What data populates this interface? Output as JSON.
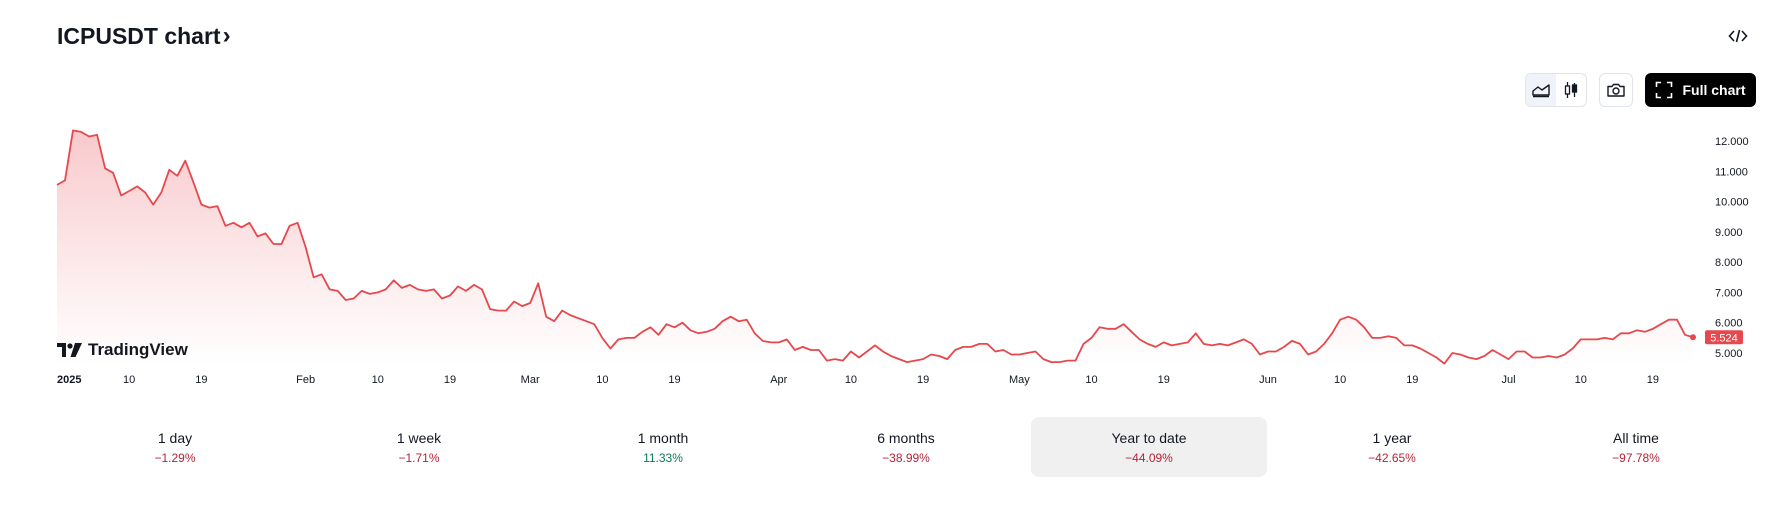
{
  "header": {
    "title": "ICPUSDT chart",
    "chevron": "›"
  },
  "icons": {
    "embed": "code-icon",
    "area_chart": "area-chart-icon",
    "candles": "candlestick-icon",
    "snapshot": "camera-icon",
    "fullscreen": "fullscreen-icon"
  },
  "toolbar": {
    "full_chart_label": "Full chart"
  },
  "brand": {
    "logo_text": "TradingView"
  },
  "colors": {
    "line": "#e5484d",
    "fill_top": "#f8c9cc",
    "neg": "#b2253a",
    "pos": "#0d7a55",
    "badge": "#e5484d"
  },
  "chart_data": {
    "type": "area",
    "ylim": [
      4.6,
      12.6
    ],
    "y_ticks": [
      "12.000",
      "11.000",
      "10.000",
      "9.000",
      "8.000",
      "7.000",
      "6.000",
      "5.000"
    ],
    "y_tick_values": [
      12,
      11,
      10,
      9,
      8,
      7,
      6,
      5
    ],
    "x_ticks": [
      {
        "label": "2025",
        "i": 0,
        "bold": true
      },
      {
        "label": "10",
        "i": 9
      },
      {
        "label": "19",
        "i": 18
      },
      {
        "label": "Feb",
        "i": 31
      },
      {
        "label": "10",
        "i": 40
      },
      {
        "label": "19",
        "i": 49
      },
      {
        "label": "Mar",
        "i": 59
      },
      {
        "label": "10",
        "i": 68
      },
      {
        "label": "19",
        "i": 77
      },
      {
        "label": "Apr",
        "i": 90
      },
      {
        "label": "10",
        "i": 99
      },
      {
        "label": "19",
        "i": 108
      },
      {
        "label": "May",
        "i": 120
      },
      {
        "label": "10",
        "i": 129
      },
      {
        "label": "19",
        "i": 138
      },
      {
        "label": "Jun",
        "i": 151
      },
      {
        "label": "10",
        "i": 160
      },
      {
        "label": "19",
        "i": 169
      },
      {
        "label": "Jul",
        "i": 181
      },
      {
        "label": "10",
        "i": 190
      },
      {
        "label": "19",
        "i": 199
      }
    ],
    "last_value_label": "5.524",
    "values": [
      10.55,
      10.7,
      12.35,
      12.3,
      12.15,
      12.2,
      11.1,
      10.95,
      10.2,
      10.35,
      10.5,
      10.3,
      9.9,
      10.3,
      11.05,
      10.85,
      11.35,
      10.65,
      9.9,
      9.8,
      9.85,
      9.2,
      9.3,
      9.15,
      9.3,
      8.85,
      8.95,
      8.6,
      8.6,
      9.2,
      9.3,
      8.5,
      7.5,
      7.6,
      7.1,
      7.05,
      6.75,
      6.8,
      7.05,
      6.95,
      7.0,
      7.1,
      7.4,
      7.15,
      7.25,
      7.1,
      7.05,
      7.1,
      6.8,
      6.9,
      7.2,
      7.05,
      7.25,
      7.1,
      6.45,
      6.4,
      6.4,
      6.7,
      6.55,
      6.65,
      7.3,
      6.2,
      6.05,
      6.4,
      6.25,
      6.15,
      6.05,
      5.95,
      5.5,
      5.15,
      5.45,
      5.5,
      5.5,
      5.7,
      5.85,
      5.6,
      5.95,
      5.85,
      6.0,
      5.75,
      5.65,
      5.7,
      5.8,
      6.05,
      6.2,
      6.05,
      6.1,
      5.65,
      5.4,
      5.35,
      5.35,
      5.45,
      5.1,
      5.2,
      5.1,
      5.1,
      4.75,
      4.8,
      4.75,
      5.05,
      4.85,
      5.05,
      5.25,
      5.05,
      4.9,
      4.8,
      4.7,
      4.75,
      4.8,
      4.95,
      4.9,
      4.8,
      5.1,
      5.2,
      5.2,
      5.3,
      5.3,
      5.05,
      5.1,
      4.95,
      4.95,
      5.0,
      5.05,
      4.8,
      4.7,
      4.7,
      4.75,
      4.75,
      5.3,
      5.5,
      5.85,
      5.8,
      5.8,
      5.95,
      5.7,
      5.45,
      5.3,
      5.2,
      5.35,
      5.25,
      5.3,
      5.35,
      5.65,
      5.3,
      5.25,
      5.3,
      5.25,
      5.35,
      5.45,
      5.3,
      4.95,
      5.05,
      5.05,
      5.2,
      5.4,
      5.3,
      4.95,
      5.05,
      5.3,
      5.65,
      6.1,
      6.2,
      6.1,
      5.85,
      5.5,
      5.5,
      5.55,
      5.5,
      5.25,
      5.25,
      5.15,
      5.0,
      4.85,
      4.65,
      5.0,
      4.95,
      4.85,
      4.8,
      4.9,
      5.1,
      4.95,
      4.8,
      5.05,
      5.05,
      4.85,
      4.85,
      4.9,
      4.85,
      4.95,
      5.15,
      5.45,
      5.45,
      5.45,
      5.5,
      5.45,
      5.65,
      5.65,
      5.75,
      5.7,
      5.8,
      5.95,
      6.1,
      6.1,
      5.6,
      5.52
    ]
  },
  "ranges": [
    {
      "label": "1 day",
      "change": "−1.29%",
      "sign": "neg"
    },
    {
      "label": "1 week",
      "change": "−1.71%",
      "sign": "neg"
    },
    {
      "label": "1 month",
      "change": "11.33%",
      "sign": "pos"
    },
    {
      "label": "6 months",
      "change": "−38.99%",
      "sign": "neg"
    },
    {
      "label": "Year to date",
      "change": "−44.09%",
      "sign": "neg",
      "active": true
    },
    {
      "label": "1 year",
      "change": "−42.65%",
      "sign": "neg"
    },
    {
      "label": "All time",
      "change": "−97.78%",
      "sign": "neg"
    }
  ]
}
